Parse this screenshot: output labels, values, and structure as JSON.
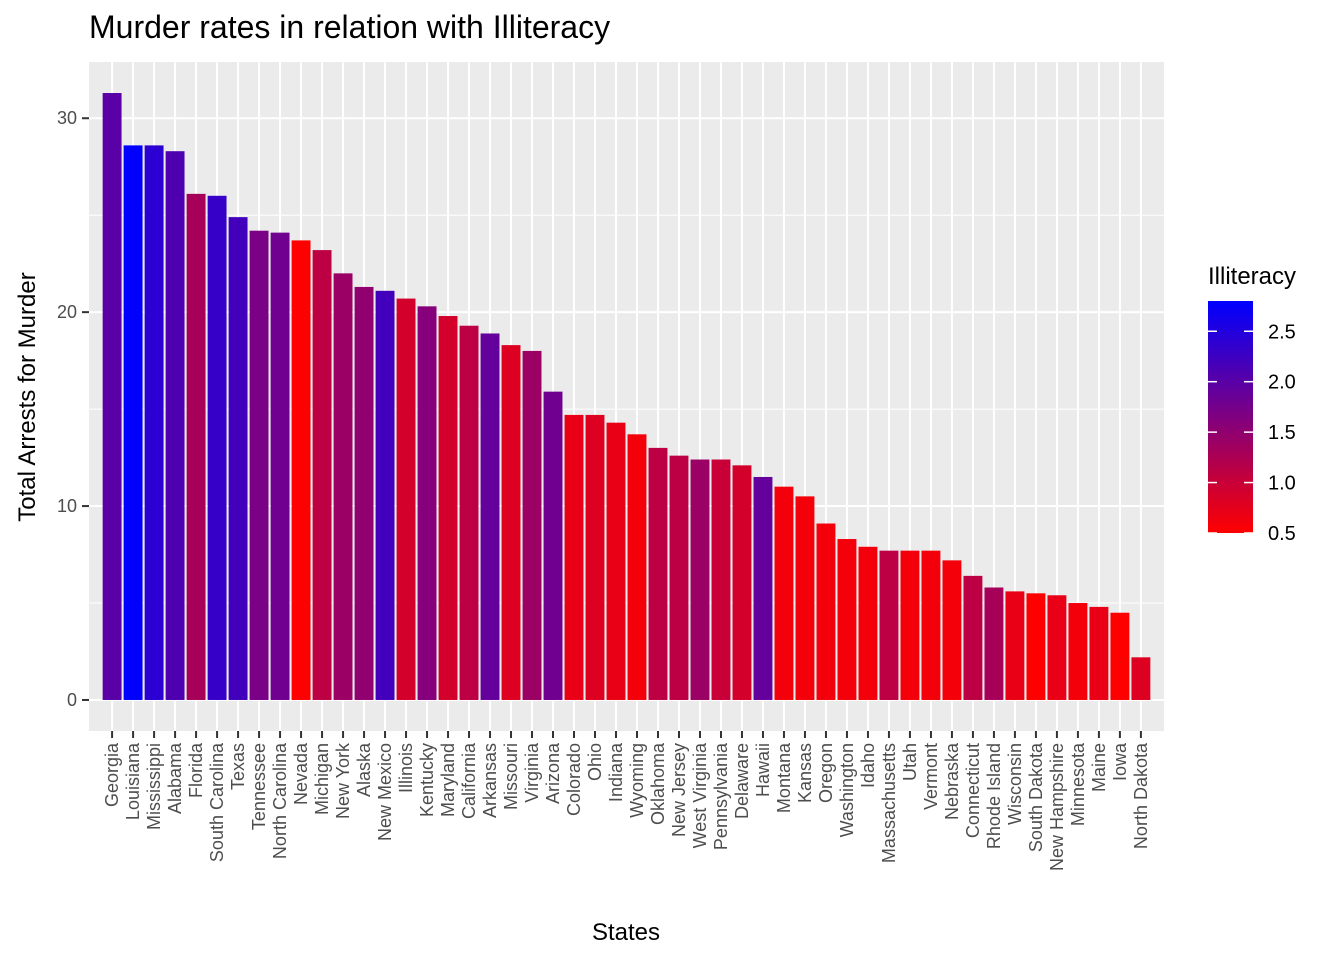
{
  "chart_data": {
    "type": "bar",
    "title": "Murder rates in relation with Illiteracy",
    "xlabel": "States",
    "ylabel": "Total Arrests for Murder",
    "ylim": [
      -1.6,
      32.9
    ],
    "yticks": [
      0,
      10,
      20,
      30
    ],
    "grid": true,
    "legend": {
      "title": "Illiteracy",
      "placement": "right",
      "low_color": "#FF0000",
      "high_color": "#0000FF",
      "fill_range": [
        0.5,
        2.8
      ],
      "ticks": [
        0.5,
        1.0,
        1.5,
        2.0,
        2.5
      ],
      "tick_labels": [
        "0.5",
        "1.0",
        "1.5",
        "2.0",
        "2.5"
      ]
    },
    "categories": [
      "Georgia",
      "Louisiana",
      "Mississippi",
      "Alabama",
      "Florida",
      "South Carolina",
      "Texas",
      "Tennessee",
      "North Carolina",
      "Nevada",
      "Michigan",
      "New York",
      "Alaska",
      "New Mexico",
      "Illinois",
      "Kentucky",
      "Maryland",
      "California",
      "Arkansas",
      "Missouri",
      "Virginia",
      "Arizona",
      "Colorado",
      "Ohio",
      "Indiana",
      "Wyoming",
      "Oklahoma",
      "New Jersey",
      "West Virginia",
      "Pennsylvania",
      "Delaware",
      "Hawaii",
      "Montana",
      "Kansas",
      "Oregon",
      "Washington",
      "Idaho",
      "Massachusetts",
      "Utah",
      "Vermont",
      "Nebraska",
      "Connecticut",
      "Rhode Island",
      "Wisconsin",
      "South Dakota",
      "New Hampshire",
      "Minnesota",
      "Maine",
      "Iowa",
      "North Dakota"
    ],
    "values": [
      31.3,
      28.6,
      28.6,
      28.3,
      26.1,
      26.0,
      24.9,
      24.2,
      24.1,
      23.7,
      23.2,
      22.0,
      21.3,
      21.1,
      20.7,
      20.3,
      19.8,
      19.3,
      18.9,
      18.3,
      18.0,
      15.9,
      14.7,
      14.7,
      14.3,
      13.7,
      13.0,
      12.6,
      12.4,
      12.4,
      12.1,
      11.5,
      11.0,
      10.5,
      9.1,
      8.3,
      7.9,
      7.7,
      7.7,
      7.7,
      7.2,
      6.4,
      5.8,
      5.6,
      5.5,
      5.4,
      5.0,
      4.8,
      4.5,
      2.2
    ],
    "fill_values": [
      2.0,
      2.8,
      2.4,
      2.1,
      1.3,
      2.3,
      2.2,
      1.7,
      1.8,
      0.5,
      1.1,
      1.4,
      1.5,
      2.2,
      0.9,
      1.6,
      0.9,
      1.1,
      1.9,
      0.8,
      1.4,
      1.8,
      0.7,
      0.8,
      0.7,
      0.6,
      1.1,
      1.1,
      1.4,
      1.0,
      0.9,
      1.9,
      0.6,
      0.6,
      0.6,
      0.6,
      0.6,
      1.1,
      0.6,
      0.6,
      0.6,
      1.1,
      1.3,
      0.7,
      0.5,
      0.7,
      0.6,
      0.7,
      0.5,
      0.8
    ]
  }
}
